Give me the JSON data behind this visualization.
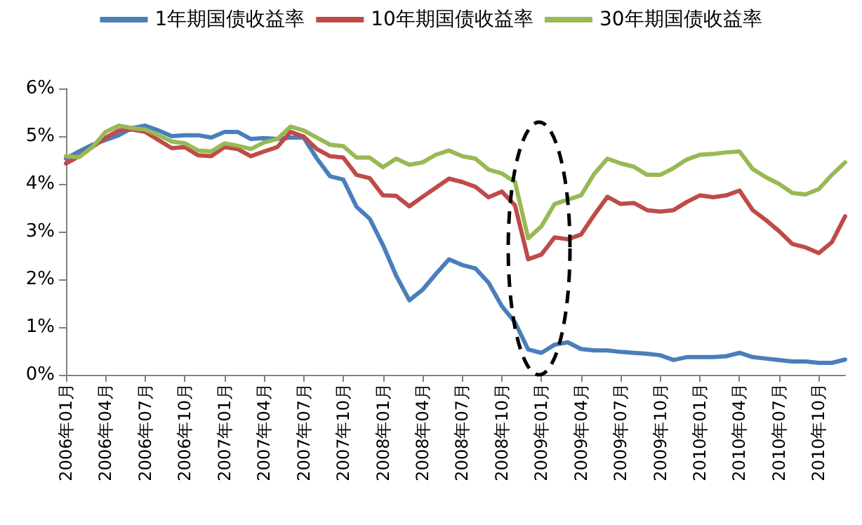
{
  "chart_data": {
    "type": "line",
    "categories": [
      "2006年01月",
      null,
      null,
      "2006年04月",
      null,
      null,
      "2006年07月",
      null,
      null,
      "2006年10月",
      null,
      null,
      "2007年01月",
      null,
      null,
      "2007年04月",
      null,
      null,
      "2007年07月",
      null,
      null,
      "2007年10月",
      null,
      null,
      "2008年01月",
      null,
      null,
      "2008年04月",
      null,
      null,
      "2008年07月",
      null,
      null,
      "2008年10月",
      null,
      null,
      "2009年01月",
      null,
      null,
      "2009年04月",
      null,
      null,
      "2009年07月",
      null,
      null,
      "2009年10月",
      null,
      null,
      "2010年01月",
      null,
      null,
      "2010年04月",
      null,
      null,
      "2010年07月",
      null,
      null,
      "2010年10月",
      null,
      null
    ],
    "series": [
      {
        "name": "1年期国债收益率",
        "color": "#4a7ebb",
        "values": [
          4.53,
          4.68,
          4.82,
          4.92,
          5.02,
          5.17,
          5.22,
          5.12,
          5.0,
          5.02,
          5.02,
          4.97,
          5.09,
          5.09,
          4.94,
          4.96,
          4.94,
          4.97,
          4.97,
          4.53,
          4.16,
          4.09,
          3.52,
          3.27,
          2.72,
          2.08,
          1.56,
          1.78,
          2.11,
          2.42,
          2.3,
          2.23,
          1.93,
          1.44,
          1.1,
          0.53,
          0.46,
          0.63,
          0.68,
          0.54,
          0.51,
          0.51,
          0.48,
          0.46,
          0.44,
          0.41,
          0.31,
          0.37,
          0.37,
          0.37,
          0.39,
          0.46,
          0.37,
          0.34,
          0.31,
          0.28,
          0.28,
          0.25,
          0.25,
          0.32
        ]
      },
      {
        "name": "10年期国债收益率",
        "color": "#be4b48",
        "values": [
          4.43,
          4.58,
          4.77,
          4.97,
          5.12,
          5.14,
          5.09,
          4.92,
          4.75,
          4.77,
          4.6,
          4.58,
          4.77,
          4.73,
          4.58,
          4.68,
          4.77,
          5.09,
          4.99,
          4.73,
          4.58,
          4.55,
          4.19,
          4.12,
          3.76,
          3.75,
          3.53,
          3.73,
          3.92,
          4.11,
          4.04,
          3.94,
          3.72,
          3.84,
          3.55,
          2.42,
          2.52,
          2.88,
          2.84,
          2.94,
          3.35,
          3.73,
          3.58,
          3.6,
          3.45,
          3.42,
          3.45,
          3.62,
          3.76,
          3.72,
          3.76,
          3.86,
          3.45,
          3.24,
          3.01,
          2.74,
          2.67,
          2.55,
          2.78,
          3.32
        ]
      },
      {
        "name": "30年期国债收益率",
        "color": "#98b954",
        "values": [
          4.58,
          4.56,
          4.77,
          5.09,
          5.22,
          5.17,
          5.14,
          5.02,
          4.89,
          4.85,
          4.7,
          4.68,
          4.85,
          4.8,
          4.73,
          4.87,
          4.94,
          5.2,
          5.12,
          4.97,
          4.82,
          4.79,
          4.55,
          4.55,
          4.35,
          4.53,
          4.4,
          4.45,
          4.61,
          4.7,
          4.58,
          4.53,
          4.3,
          4.22,
          4.04,
          2.86,
          3.11,
          3.58,
          3.67,
          3.76,
          4.21,
          4.53,
          4.43,
          4.36,
          4.19,
          4.19,
          4.33,
          4.51,
          4.61,
          4.63,
          4.66,
          4.68,
          4.31,
          4.14,
          4.0,
          3.81,
          3.78,
          3.89,
          4.19,
          4.45
        ]
      }
    ],
    "ylim": [
      0,
      6
    ],
    "yticks": [
      {
        "value": 0,
        "label": "0%"
      },
      {
        "value": 1,
        "label": "1%"
      },
      {
        "value": 2,
        "label": "2%"
      },
      {
        "value": 3,
        "label": "3%"
      },
      {
        "value": 4,
        "label": "4%"
      },
      {
        "value": 5,
        "label": "5%"
      },
      {
        "value": 6,
        "label": "6%"
      }
    ],
    "grid": false,
    "legend": "top",
    "marker": "none",
    "line_style": "solid"
  }
}
